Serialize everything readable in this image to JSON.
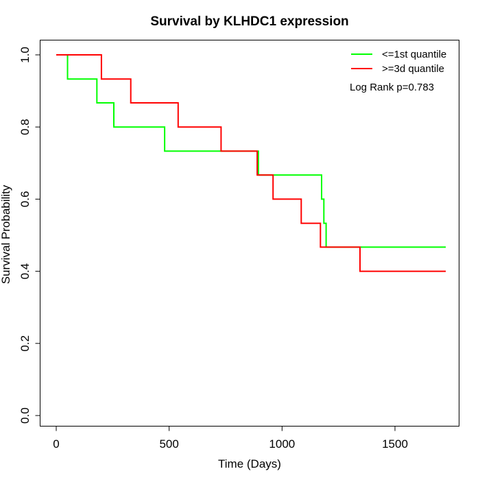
{
  "chart_data": {
    "type": "line",
    "title": "Survival by KLHDC1 expression",
    "xlabel": "Time (Days)",
    "ylabel": "Survival Probability",
    "xlim": [
      0,
      1780
    ],
    "ylim": [
      0,
      1.0
    ],
    "x_ticks": [
      0,
      500,
      1000,
      1500
    ],
    "y_ticks": [
      0.0,
      0.2,
      0.4,
      0.6,
      0.8,
      1.0
    ],
    "x_tick_labels": [
      "0",
      "500",
      "1000",
      "1500"
    ],
    "y_tick_labels": [
      "0.0",
      "0.2",
      "0.4",
      "0.6",
      "0.8",
      "1.0"
    ],
    "grid": false,
    "legend_position": "top-right",
    "annotation": "Log Rank p=0.783",
    "series": [
      {
        "name": "<=1st quantile",
        "color": "#00ff00",
        "step_points": [
          [
            0,
            1.0
          ],
          [
            50,
            1.0
          ],
          [
            50,
            0.933
          ],
          [
            180,
            0.933
          ],
          [
            180,
            0.867
          ],
          [
            255,
            0.867
          ],
          [
            255,
            0.8
          ],
          [
            480,
            0.8
          ],
          [
            480,
            0.733
          ],
          [
            895,
            0.733
          ],
          [
            895,
            0.667
          ],
          [
            1175,
            0.667
          ],
          [
            1175,
            0.6
          ],
          [
            1185,
            0.6
          ],
          [
            1185,
            0.533
          ],
          [
            1195,
            0.533
          ],
          [
            1195,
            0.467
          ],
          [
            1725,
            0.467
          ]
        ]
      },
      {
        "name": ">=3d quantile",
        "color": "#ff0000",
        "step_points": [
          [
            0,
            1.0
          ],
          [
            200,
            1.0
          ],
          [
            200,
            0.933
          ],
          [
            330,
            0.933
          ],
          [
            330,
            0.867
          ],
          [
            540,
            0.867
          ],
          [
            540,
            0.8
          ],
          [
            730,
            0.8
          ],
          [
            730,
            0.733
          ],
          [
            890,
            0.733
          ],
          [
            890,
            0.667
          ],
          [
            960,
            0.667
          ],
          [
            960,
            0.6
          ],
          [
            1085,
            0.6
          ],
          [
            1085,
            0.533
          ],
          [
            1170,
            0.533
          ],
          [
            1170,
            0.467
          ],
          [
            1345,
            0.467
          ],
          [
            1345,
            0.4
          ],
          [
            1725,
            0.4
          ]
        ]
      }
    ]
  }
}
